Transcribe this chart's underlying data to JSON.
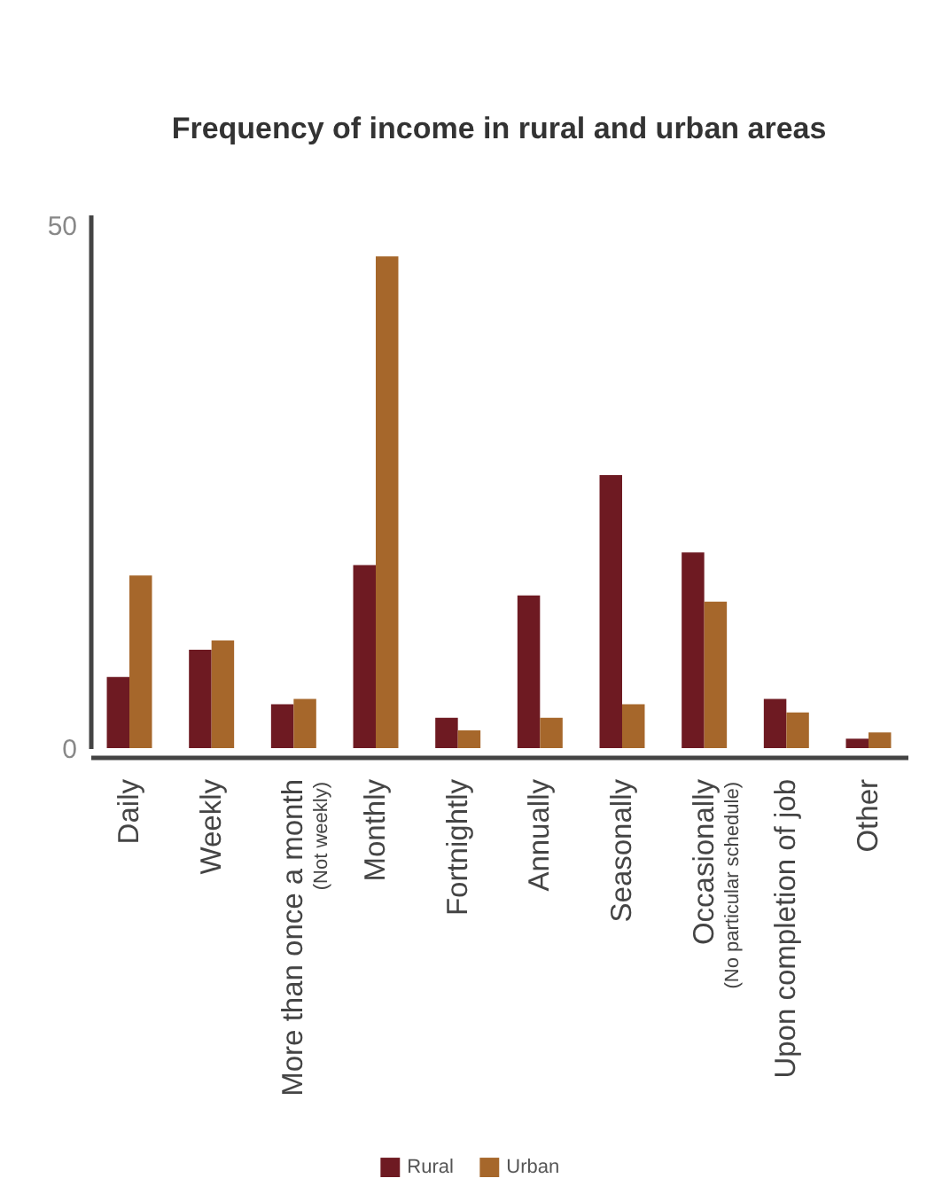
{
  "chart_data": {
    "type": "bar",
    "title": "Frequency of income in rural and urban areas",
    "categories": [
      "Daily",
      "Weekly",
      "More than once a month\n(Not weekly)",
      "Monthly",
      "Fortnightly",
      "Annually",
      "Seasonally",
      "Occasionally\n(No particular schedule)",
      "Upon completion of job",
      "Other"
    ],
    "series": [
      {
        "name": "Rural",
        "color": "#6e1a22",
        "values": [
          6.8,
          9.4,
          4.2,
          17.5,
          2.9,
          14.6,
          26.1,
          18.7,
          4.7,
          0.9
        ]
      },
      {
        "name": "Urban",
        "color": "#a6672b",
        "values": [
          16.5,
          10.3,
          4.7,
          47.0,
          1.7,
          2.9,
          4.2,
          14.0,
          3.4,
          1.5
        ]
      }
    ],
    "ylim": [
      0,
      51
    ],
    "yticks": [
      0,
      50
    ],
    "legend": "bottom"
  }
}
